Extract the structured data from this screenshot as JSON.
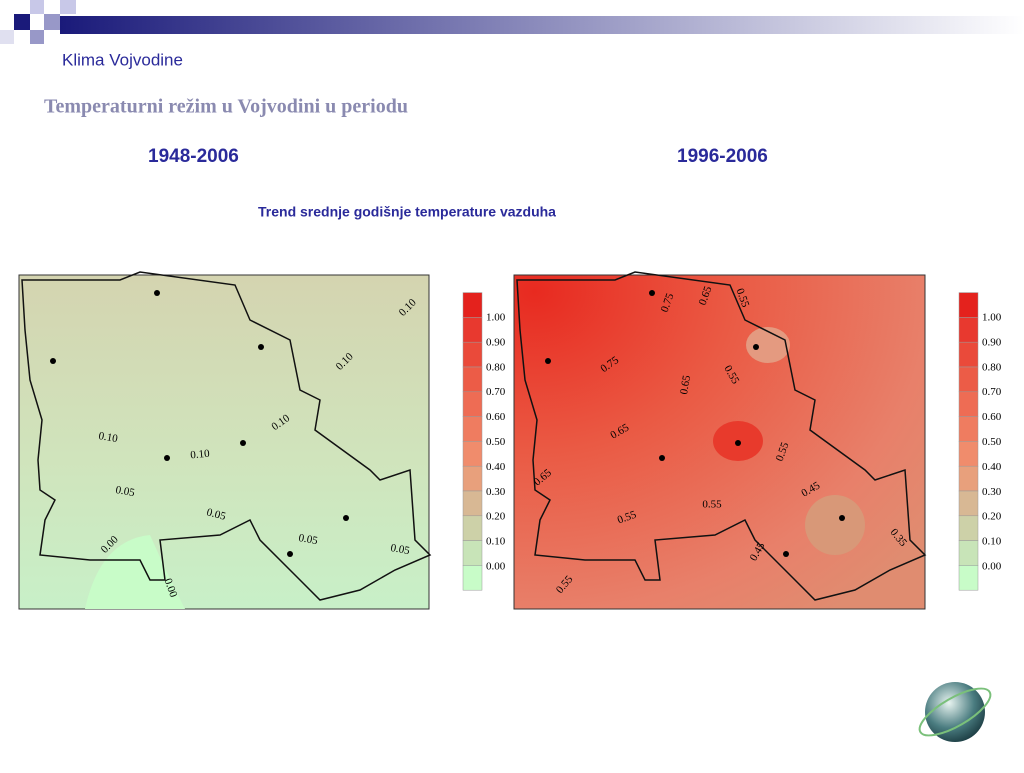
{
  "header": {
    "subtitle": "Klima Vojvodine",
    "title": "Temperaturni režim u Vojvodini u periodu"
  },
  "periods": [
    "1948-2006",
    "1996-2006"
  ],
  "caption": "Trend srednje godišnje temperature vazduha",
  "legend": {
    "labels": [
      "1.00",
      "0.90",
      "0.80",
      "0.70",
      "0.60",
      "0.50",
      "0.40",
      "0.30",
      "0.20",
      "0.10",
      "0.00"
    ],
    "colors": [
      "#e4221d",
      "#e8392f",
      "#ea4a3a",
      "#ec5c47",
      "#ee6c54",
      "#ef7c60",
      "#f08c6c",
      "#e8a07c",
      "#d8b894",
      "#cdd1a8",
      "#c8e4b8",
      "#c8fcc8"
    ]
  },
  "maps": [
    {
      "contour_labels": [
        "0.10",
        "0.10",
        "0.10",
        "0.10",
        "0.10",
        "0.05",
        "0.05",
        "0.05",
        "0.05",
        "0.00",
        "0.00"
      ]
    },
    {
      "contour_labels": [
        "0.75",
        "0.75",
        "0.65",
        "0.65",
        "0.65",
        "0.65",
        "0.55",
        "0.55",
        "0.55",
        "0.55",
        "0.55",
        "0.55",
        "0.45",
        "0.45",
        "0.35"
      ]
    }
  ]
}
